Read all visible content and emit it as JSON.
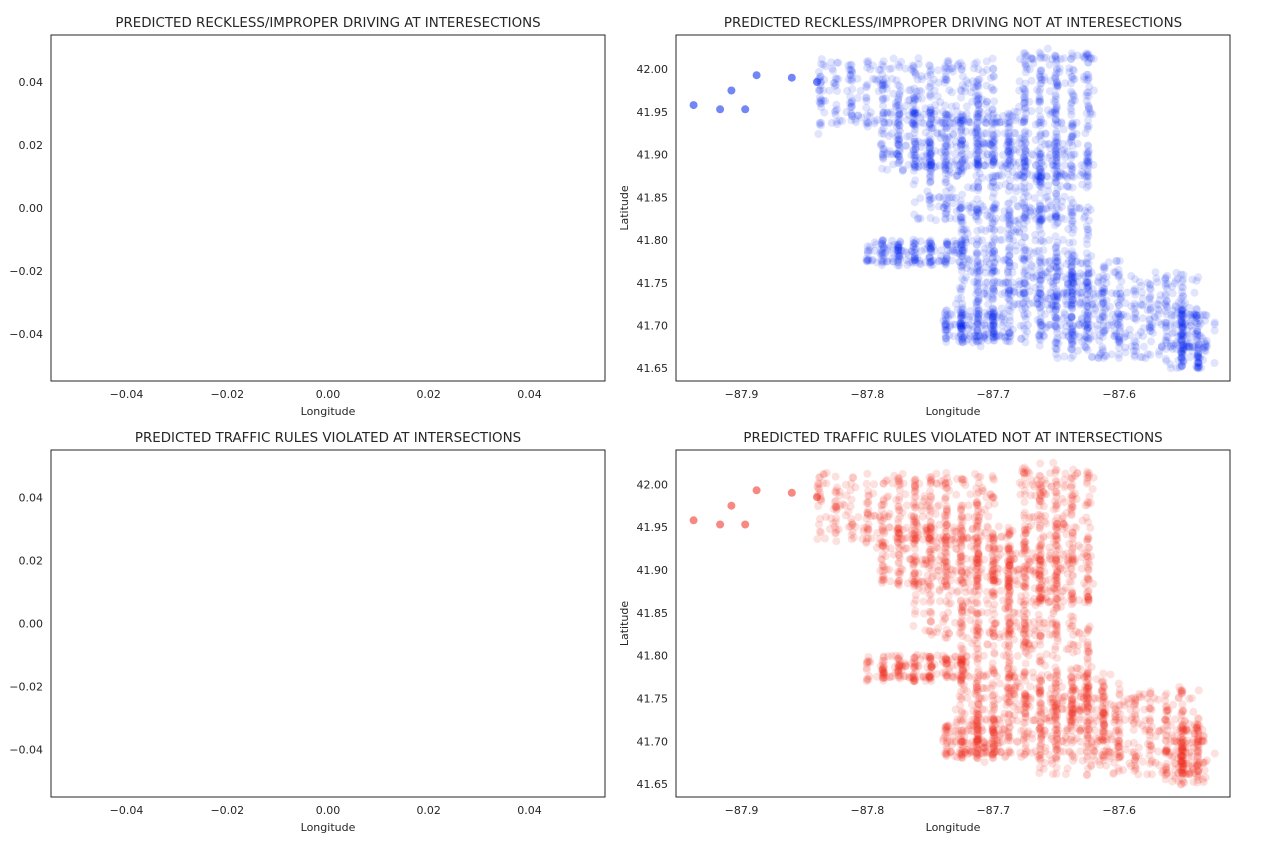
{
  "figure": {
    "panel_count": 4,
    "background": "#ffffff",
    "axes_color": "#262626"
  },
  "chart_data": [
    {
      "type": "scatter",
      "title": "PREDICTED RECKLESS/IMPROPER DRIVING AT INTERESECTIONS",
      "xlabel": "Longitude",
      "ylabel": "",
      "xlim": [
        -0.055,
        0.055
      ],
      "ylim": [
        -0.055,
        0.055
      ],
      "xticks": [
        -0.04,
        -0.02,
        0.0,
        0.02,
        0.04
      ],
      "xtick_labels": [
        "−0.04",
        "−0.02",
        "0.00",
        "0.02",
        "0.04"
      ],
      "yticks": [
        -0.04,
        -0.02,
        0.0,
        0.02,
        0.04
      ],
      "ytick_labels": [
        "−0.04",
        "−0.02",
        "0.00",
        "0.02",
        "0.04"
      ],
      "grid": false,
      "points": []
    },
    {
      "type": "scatter",
      "title": "PREDICTED RECKLESS/IMPROPER DRIVING NOT AT INTERESECTIONS",
      "xlabel": "Longitude",
      "ylabel": "Latitude",
      "xlim": [
        -87.952,
        -87.512
      ],
      "ylim": [
        41.635,
        42.04
      ],
      "xticks": [
        -87.9,
        -87.8,
        -87.7,
        -87.6
      ],
      "xtick_labels": [
        "−87.9",
        "−87.8",
        "−87.7",
        "−87.6"
      ],
      "yticks": [
        41.65,
        41.7,
        41.75,
        41.8,
        41.85,
        41.9,
        41.95,
        42.0
      ],
      "ytick_labels": [
        "41.65",
        "41.70",
        "41.75",
        "41.80",
        "41.85",
        "41.90",
        "41.95",
        "42.00"
      ],
      "grid": false,
      "color": "#0022ee",
      "point_alpha": 0.12,
      "outliers": [
        [
          -87.938,
          41.958
        ],
        [
          -87.917,
          41.953
        ],
        [
          -87.908,
          41.975
        ],
        [
          -87.897,
          41.953
        ],
        [
          -87.888,
          41.993
        ],
        [
          -87.86,
          41.99
        ],
        [
          -87.84,
          41.985
        ]
      ],
      "density_regions": [
        {
          "lon": [
            -87.84,
            -87.7
          ],
          "lat": [
            41.93,
            42.01
          ]
        },
        {
          "lon": [
            -87.79,
            -87.68
          ],
          "lat": [
            41.88,
            41.95
          ]
        },
        {
          "lon": [
            -87.76,
            -87.64
          ],
          "lat": [
            41.82,
            41.92
          ]
        },
        {
          "lon": [
            -87.73,
            -87.62
          ],
          "lat": [
            41.72,
            41.84
          ]
        },
        {
          "lon": [
            -87.72,
            -87.6
          ],
          "lat": [
            41.68,
            41.78
          ]
        },
        {
          "lon": [
            -87.8,
            -87.72
          ],
          "lat": [
            41.77,
            41.8
          ]
        },
        {
          "lon": [
            -87.66,
            -87.54
          ],
          "lat": [
            41.66,
            41.76
          ]
        },
        {
          "lon": [
            -87.68,
            -87.62
          ],
          "lat": [
            41.86,
            42.02
          ]
        },
        {
          "lon": [
            -87.74,
            -87.69
          ],
          "lat": [
            41.68,
            41.72
          ]
        },
        {
          "lon": [
            -87.56,
            -87.53
          ],
          "lat": [
            41.65,
            41.72
          ]
        }
      ]
    },
    {
      "type": "scatter",
      "title": "PREDICTED TRAFFIC RULES VIOLATED AT INTERSECTIONS",
      "xlabel": "Longitude",
      "ylabel": "",
      "xlim": [
        -0.055,
        0.055
      ],
      "ylim": [
        -0.055,
        0.055
      ],
      "xticks": [
        -0.04,
        -0.02,
        0.0,
        0.02,
        0.04
      ],
      "xtick_labels": [
        "−0.04",
        "−0.02",
        "0.00",
        "0.02",
        "0.04"
      ],
      "yticks": [
        -0.04,
        -0.02,
        0.0,
        0.02,
        0.04
      ],
      "ytick_labels": [
        "−0.04",
        "−0.02",
        "0.00",
        "0.02",
        "0.04"
      ],
      "grid": false,
      "points": []
    },
    {
      "type": "scatter",
      "title": "PREDICTED TRAFFIC RULES VIOLATED NOT AT INTERSECTIONS",
      "xlabel": "Longitude",
      "ylabel": "Latitude",
      "xlim": [
        -87.952,
        -87.512
      ],
      "ylim": [
        41.635,
        42.04
      ],
      "xticks": [
        -87.9,
        -87.8,
        -87.7,
        -87.6
      ],
      "xtick_labels": [
        "−87.9",
        "−87.8",
        "−87.7",
        "−87.6"
      ],
      "yticks": [
        41.65,
        41.7,
        41.75,
        41.8,
        41.85,
        41.9,
        41.95,
        42.0
      ],
      "ytick_labels": [
        "41.65",
        "41.70",
        "41.75",
        "41.80",
        "41.85",
        "41.90",
        "41.95",
        "42.00"
      ],
      "grid": false,
      "color": "#ee2a1e",
      "point_alpha": 0.14,
      "outliers": [
        [
          -87.938,
          41.958
        ],
        [
          -87.917,
          41.953
        ],
        [
          -87.908,
          41.975
        ],
        [
          -87.897,
          41.953
        ],
        [
          -87.888,
          41.993
        ],
        [
          -87.86,
          41.99
        ],
        [
          -87.84,
          41.985
        ]
      ],
      "density_regions": [
        {
          "lon": [
            -87.84,
            -87.7
          ],
          "lat": [
            41.93,
            42.01
          ]
        },
        {
          "lon": [
            -87.79,
            -87.68
          ],
          "lat": [
            41.88,
            41.95
          ]
        },
        {
          "lon": [
            -87.76,
            -87.64
          ],
          "lat": [
            41.82,
            41.92
          ]
        },
        {
          "lon": [
            -87.73,
            -87.62
          ],
          "lat": [
            41.72,
            41.84
          ]
        },
        {
          "lon": [
            -87.72,
            -87.6
          ],
          "lat": [
            41.68,
            41.78
          ]
        },
        {
          "lon": [
            -87.8,
            -87.72
          ],
          "lat": [
            41.77,
            41.8
          ]
        },
        {
          "lon": [
            -87.66,
            -87.54
          ],
          "lat": [
            41.66,
            41.76
          ]
        },
        {
          "lon": [
            -87.68,
            -87.62
          ],
          "lat": [
            41.86,
            42.02
          ]
        },
        {
          "lon": [
            -87.74,
            -87.69
          ],
          "lat": [
            41.68,
            41.72
          ]
        },
        {
          "lon": [
            -87.56,
            -87.53
          ],
          "lat": [
            41.65,
            41.72
          ]
        }
      ]
    }
  ]
}
